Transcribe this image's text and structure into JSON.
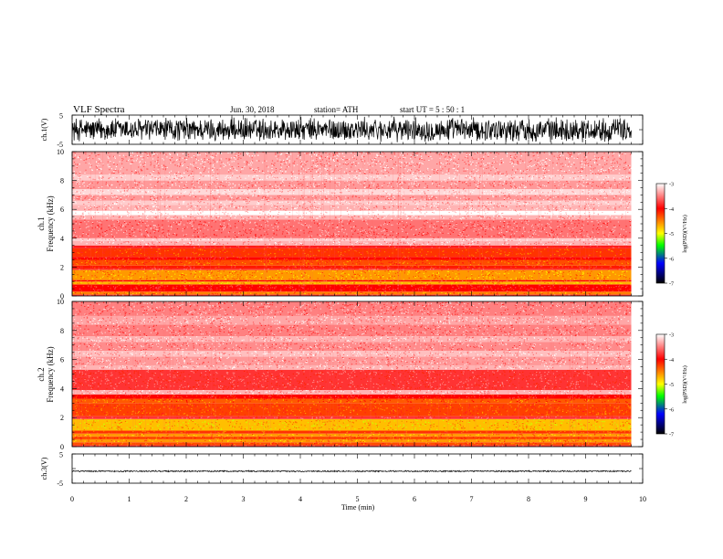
{
  "header": {
    "title": "VLF  Spectra",
    "date": "Jun. 30, 2018",
    "station": "station= ATH",
    "start": "start  UT  =    5  : 50 : 1"
  },
  "colorbar": {
    "label": "log(PSD)(V²/Hz)",
    "ticks": [
      "-3",
      "-4",
      "-5",
      "-6",
      "-7"
    ],
    "colors": [
      "#ffffff",
      "#ff0000",
      "#ffff00",
      "#00ff00",
      "#0000ff",
      "#000000"
    ]
  },
  "chart_data": [
    {
      "type": "line",
      "name": "ch1-waveform",
      "ylabel": "ch.1(V)",
      "ylim": [
        -5,
        5
      ],
      "yticks": [
        "5",
        "-5"
      ],
      "xlim": [
        0,
        10
      ],
      "note_amplitude": 4.5
    },
    {
      "type": "heatmap",
      "name": "ch1-spectrogram",
      "ylabel_channel": "ch.1",
      "ylabel": "Frequency  (kHz)",
      "xlim": [
        0,
        10
      ],
      "ylim": [
        0,
        10
      ],
      "yticks": [
        "0",
        "2",
        "4",
        "6",
        "8",
        "10"
      ],
      "data_end_min": 9.8,
      "bands": [
        {
          "f0": 0.0,
          "f1": 0.1,
          "log_psd": -3.8
        },
        {
          "f0": 0.1,
          "f1": 0.3,
          "log_psd": -4.5
        },
        {
          "f0": 0.3,
          "f1": 0.8,
          "log_psd": -4.0
        },
        {
          "f0": 0.8,
          "f1": 1.0,
          "log_psd": -4.7
        },
        {
          "f0": 1.0,
          "f1": 1.1,
          "log_psd": -4.0
        },
        {
          "f0": 1.1,
          "f1": 1.8,
          "log_psd": -4.6
        },
        {
          "f0": 1.8,
          "f1": 1.9,
          "log_psd": -3.8
        },
        {
          "f0": 1.9,
          "f1": 2.1,
          "log_psd": -4.1
        },
        {
          "f0": 2.1,
          "f1": 2.5,
          "log_psd": -4.3
        },
        {
          "f0": 2.5,
          "f1": 2.7,
          "log_psd": -4.0
        },
        {
          "f0": 2.7,
          "f1": 3.3,
          "log_psd": -4.2
        },
        {
          "f0": 3.3,
          "f1": 3.5,
          "log_psd": -3.9
        },
        {
          "f0": 3.5,
          "f1": 3.8,
          "log_psd": -3.3
        },
        {
          "f0": 3.8,
          "f1": 4.0,
          "log_psd": -3.2
        },
        {
          "f0": 4.0,
          "f1": 5.3,
          "log_psd": -3.55
        },
        {
          "f0": 5.3,
          "f1": 5.6,
          "log_psd": -3.3
        },
        {
          "f0": 5.6,
          "f1": 5.9,
          "log_psd": -3.0
        },
        {
          "f0": 5.9,
          "f1": 6.3,
          "log_psd": -3.3
        },
        {
          "f0": 6.3,
          "f1": 6.6,
          "log_psd": -3.2
        },
        {
          "f0": 6.6,
          "f1": 7.0,
          "log_psd": -3.4
        },
        {
          "f0": 7.0,
          "f1": 7.4,
          "log_psd": -3.15
        },
        {
          "f0": 7.4,
          "f1": 8.0,
          "log_psd": -3.4
        },
        {
          "f0": 8.0,
          "f1": 8.4,
          "log_psd": -3.2
        },
        {
          "f0": 8.4,
          "f1": 10.0,
          "log_psd": -3.35
        }
      ]
    },
    {
      "type": "heatmap",
      "name": "ch2-spectrogram",
      "ylabel_channel": "ch.2",
      "ylabel": "Frequency  (kHz)",
      "xlim": [
        0,
        10
      ],
      "ylim": [
        0,
        10
      ],
      "yticks": [
        "0",
        "2",
        "4",
        "6",
        "8",
        "10"
      ],
      "data_end_min": 9.8,
      "bands": [
        {
          "f0": 0.0,
          "f1": 0.1,
          "log_psd": -3.8
        },
        {
          "f0": 0.1,
          "f1": 0.3,
          "log_psd": -4.3
        },
        {
          "f0": 0.3,
          "f1": 0.5,
          "log_psd": -4.6
        },
        {
          "f0": 0.5,
          "f1": 0.7,
          "log_psd": -4.3
        },
        {
          "f0": 0.7,
          "f1": 0.9,
          "log_psd": -4.6
        },
        {
          "f0": 0.9,
          "f1": 1.1,
          "log_psd": -4.2
        },
        {
          "f0": 1.1,
          "f1": 1.9,
          "log_psd": -4.75
        },
        {
          "f0": 1.9,
          "f1": 2.1,
          "log_psd": -3.8
        },
        {
          "f0": 2.1,
          "f1": 3.0,
          "log_psd": -4.25
        },
        {
          "f0": 3.0,
          "f1": 3.3,
          "log_psd": -4.35
        },
        {
          "f0": 3.3,
          "f1": 3.6,
          "log_psd": -4.0
        },
        {
          "f0": 3.6,
          "f1": 3.9,
          "log_psd": -3.3
        },
        {
          "f0": 3.9,
          "f1": 5.3,
          "log_psd": -3.8
        },
        {
          "f0": 5.3,
          "f1": 5.6,
          "log_psd": -3.3
        },
        {
          "f0": 5.6,
          "f1": 6.2,
          "log_psd": -3.4
        },
        {
          "f0": 6.2,
          "f1": 6.6,
          "log_psd": -3.25
        },
        {
          "f0": 6.6,
          "f1": 7.2,
          "log_psd": -3.45
        },
        {
          "f0": 7.2,
          "f1": 7.6,
          "log_psd": -3.3
        },
        {
          "f0": 7.6,
          "f1": 8.4,
          "log_psd": -3.5
        },
        {
          "f0": 8.4,
          "f1": 9.0,
          "log_psd": -3.35
        },
        {
          "f0": 9.0,
          "f1": 10.0,
          "log_psd": -3.5
        }
      ]
    },
    {
      "type": "line",
      "name": "ch3-waveform",
      "ylabel": "ch.3(V)",
      "ylim": [
        -5,
        5
      ],
      "yticks": [
        "5",
        "-5"
      ],
      "xlim": [
        0,
        10
      ],
      "xlabel": "Time  (min)",
      "xticks": [
        "0",
        "1",
        "2",
        "3",
        "4",
        "5",
        "6",
        "7",
        "8",
        "9",
        "10"
      ],
      "note_offset": -0.9,
      "note_amplitude": 0.25
    }
  ]
}
